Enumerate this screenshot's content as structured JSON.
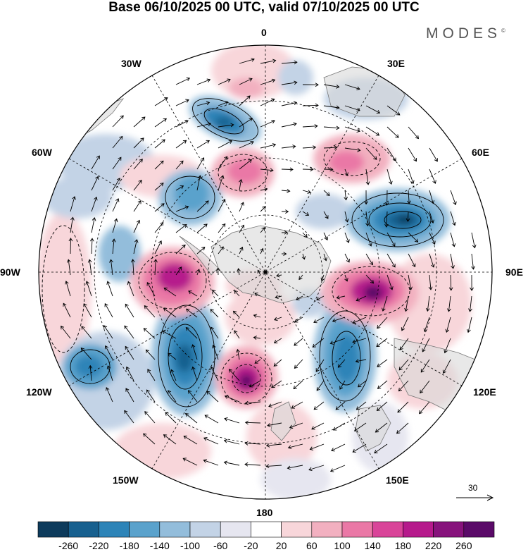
{
  "title": "Base 06/10/2025 00 UTC, valid 07/10/2025 00 UTC",
  "brand": "MODES",
  "brand_mark": "©",
  "meridian_labels": {
    "lon_0": "0",
    "lon_30e": "30E",
    "lon_60e": "60E",
    "lon_90e": "90E",
    "lon_120e": "120E",
    "lon_150e": "150E",
    "lon_180": "180",
    "lon_150w": "150W",
    "lon_120w": "120W",
    "lon_90w": "90W",
    "lon_60w": "60W",
    "lon_30w": "30W"
  },
  "wind_reference": "30",
  "colorbar": {
    "ticks": [
      "-260",
      "-220",
      "-180",
      "-140",
      "-100",
      "-60",
      "-20",
      "20",
      "60",
      "100",
      "140",
      "180",
      "220",
      "260"
    ],
    "colors": [
      "#0d3b5c",
      "#17608f",
      "#2d84b8",
      "#5aa2cc",
      "#93bddb",
      "#c3d3e6",
      "#e6e6f0",
      "#ffffff",
      "#f8d6da",
      "#f2b0c0",
      "#ea78a6",
      "#d94499",
      "#b61a8c",
      "#87137c",
      "#5a0a68"
    ]
  },
  "colors": {
    "land": "#d8d8d8",
    "coast": "#777777",
    "grid": "#000000"
  }
}
